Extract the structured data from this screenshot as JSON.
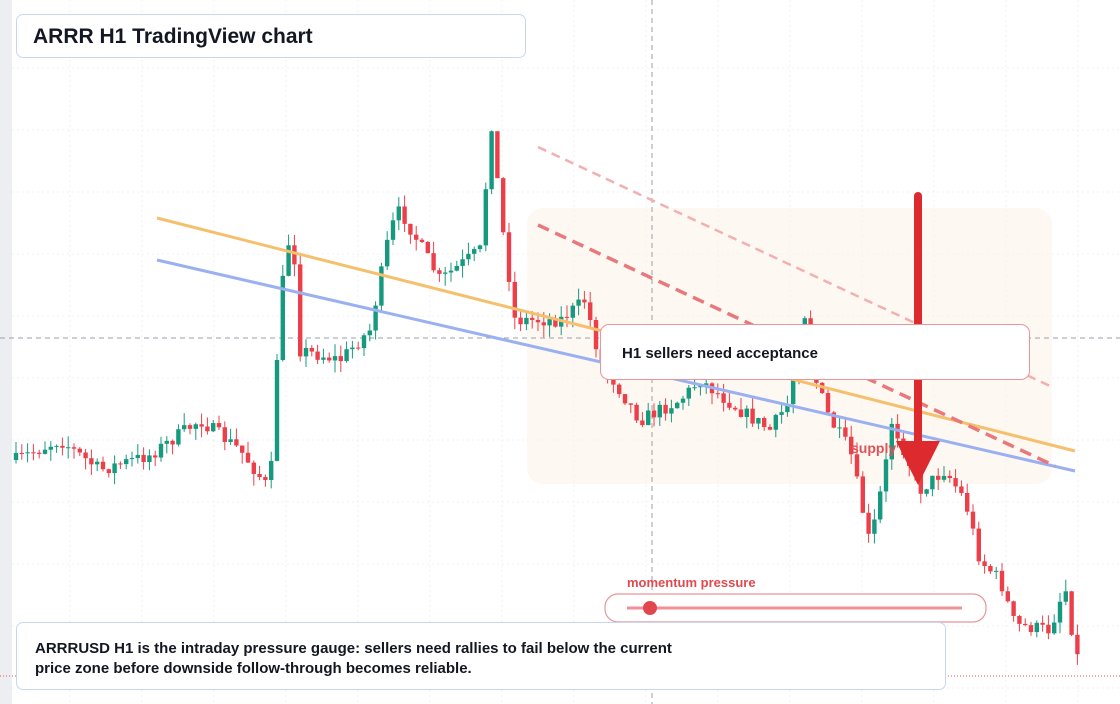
{
  "header": {
    "title": "ARRR H1 TradingView chart"
  },
  "annotations": {
    "zone_note": "H1 sellers need acceptance",
    "supply": "supply",
    "gauge": "momentum pressure"
  },
  "caption": "ARRRUSD H1 is the intraday pressure gauge: sellers need rallies to fail below the current price zone before downside follow-through becomes reliable."
}
